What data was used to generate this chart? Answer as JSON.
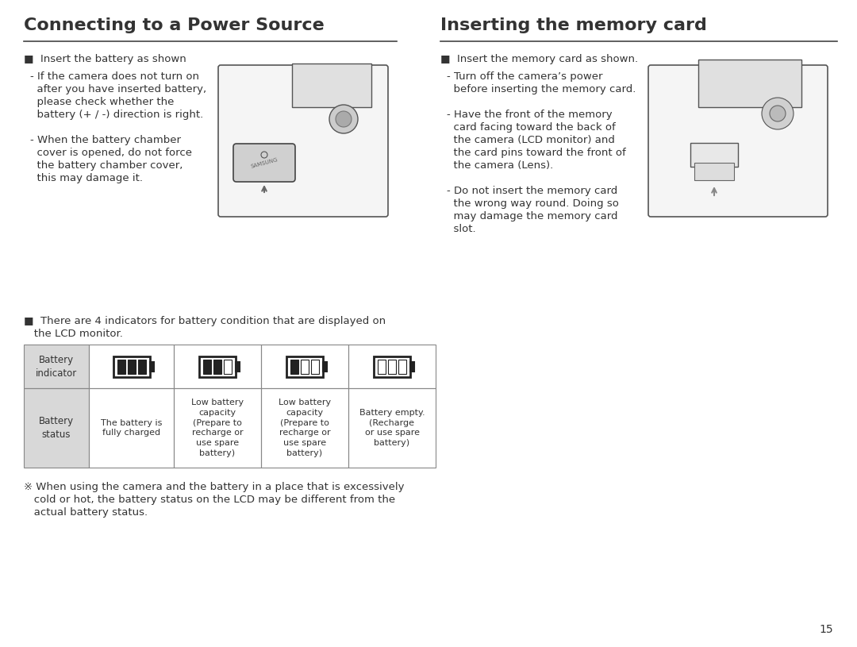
{
  "bg_color": "#ffffff",
  "page_number": "15",
  "left_title": "Connecting to a Power Source",
  "right_title": "Inserting the memory card",
  "left_bullet1": "■  Insert the battery as shown",
  "left_sub1a": "- If the camera does not turn on",
  "left_sub1b": "  after you have inserted battery,",
  "left_sub1c": "  please check whether the",
  "left_sub1d": "  battery (+ / -) direction is right.",
  "left_sub2a": "- When the battery chamber",
  "left_sub2b": "  cover is opened, do not force",
  "left_sub2c": "  the battery chamber cover,",
  "left_sub2d": "  this may damage it.",
  "right_bullet1": "■  Insert the memory card as shown.",
  "right_sub1a": "- Turn off the camera’s power",
  "right_sub1b": "  before inserting the memory card.",
  "right_sub2a": "- Have the front of the memory",
  "right_sub2b": "  card facing toward the back of",
  "right_sub2c": "  the camera (LCD monitor) and",
  "right_sub2d": "  the card pins toward the front of",
  "right_sub2e": "  the camera (Lens).",
  "right_sub3a": "- Do not insert the memory card",
  "right_sub3b": "  the wrong way round. Doing so",
  "right_sub3c": "  may damage the memory card",
  "right_sub3d": "  slot.",
  "indicator_intro1": "■  There are 4 indicators for battery condition that are displayed on",
  "indicator_intro2": "   the LCD monitor.",
  "table_col0_row0": "Battery\nindicator",
  "table_col0_row1": "Battery\nstatus",
  "table_col1_row1": "The battery is\nfully charged",
  "table_col2_row1": "Low battery\ncapacity\n(Prepare to\nrecharge or\nuse spare\nbattery)",
  "table_col3_row1": "Low battery\ncapacity\n(Prepare to\nrecharge or\nuse spare\nbattery)",
  "table_col4_row1": "Battery empty.\n(Recharge\nor use spare\nbattery)",
  "footnote1": "※ When using the camera and the battery in a place that is excessively",
  "footnote2": "   cold or hot, the battery status on the LCD may be different from the",
  "footnote3": "   actual battery status.",
  "table_gray": "#d8d8d8",
  "table_border": "#888888",
  "text_color": "#333333",
  "line_color": "#444444"
}
